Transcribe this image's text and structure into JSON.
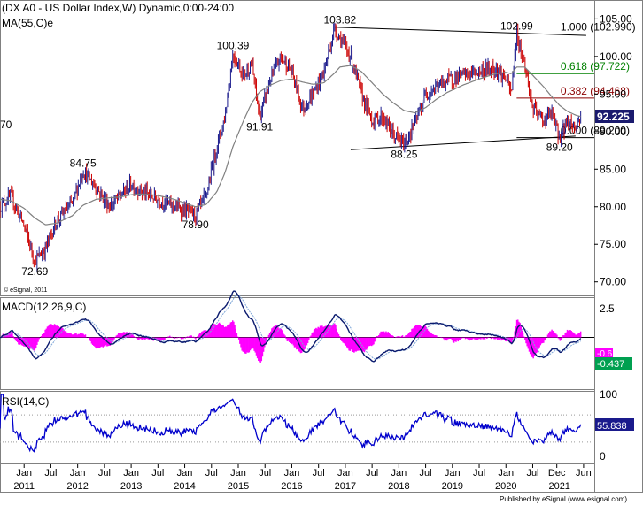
{
  "main_panel": {
    "title": "(DX A0 - US Dollar Index,W) Dynamic,0:00-24:00",
    "ma_label": "MA(55,C)e",
    "left_edge_label": "70",
    "copyright": "© eSignal, 2011",
    "y_ticks": [
      70,
      75,
      80,
      85,
      90,
      95,
      100,
      105
    ],
    "ylim": [
      68.2,
      107.4
    ],
    "last_price": "92.225",
    "colors": {
      "up": "#1a1a8c",
      "down": "#cc0000",
      "ma": "#808080",
      "fib_green": "#008000",
      "fib_red": "#8b0000"
    }
  },
  "peak_labels": [
    {
      "text": "72.69",
      "x": 2011.2,
      "y": 72.69,
      "pos": "below"
    },
    {
      "text": "84.75",
      "x": 2012.1,
      "y": 84.75,
      "pos": "above"
    },
    {
      "text": "78.90",
      "x": 2014.2,
      "y": 78.9,
      "pos": "below"
    },
    {
      "text": "100.39",
      "x": 2014.9,
      "y": 100.39,
      "pos": "above"
    },
    {
      "text": "91.91",
      "x": 2015.4,
      "y": 91.91,
      "pos": "below"
    },
    {
      "text": "103.82",
      "x": 2016.9,
      "y": 103.82,
      "pos": "above"
    },
    {
      "text": "88.25",
      "x": 2018.1,
      "y": 88.25,
      "pos": "below"
    },
    {
      "text": "102.99",
      "x": 2020.2,
      "y": 102.99,
      "pos": "above"
    },
    {
      "text": "89.20",
      "x": 2021.0,
      "y": 89.2,
      "pos": "below"
    }
  ],
  "fib_levels": [
    {
      "ratio_label": "1.000 (102.990)",
      "value": 102.99,
      "color": "#000000"
    },
    {
      "ratio_label": "0.618 (97.722)",
      "value": 97.722,
      "color": "#008000"
    },
    {
      "ratio_label": "0.382 (94.468)",
      "value": 94.468,
      "color": "#8b0000"
    },
    {
      "ratio_label": "0.000 (89.200)",
      "value": 89.2,
      "color": "#000000"
    }
  ],
  "trendlines": [
    {
      "from": [
        2016.8,
        103.9
      ],
      "to": [
        2021.5,
        102.8
      ]
    },
    {
      "from": [
        2017.1,
        87.6
      ],
      "to": [
        2021.3,
        89.4
      ]
    }
  ],
  "macd_panel": {
    "label": "MACD(12,26,9,C)",
    "y_ticks": [
      "2.5",
      "0"
    ],
    "ylim": [
      -4.5,
      3.2
    ],
    "last_value": "-0.437",
    "last_value_signal": "-0.6"
  },
  "rsi_panel": {
    "label": "RSI(14,C)",
    "y_ticks": [
      "100",
      "50",
      "0"
    ],
    "ylim": [
      0,
      100
    ],
    "last_value": "55.838",
    "levels": [
      70,
      30
    ]
  },
  "x_axis": {
    "ticks": [
      {
        "label": "Jan",
        "x": 2011.0
      },
      {
        "label": "Jul",
        "x": 2011.5
      },
      {
        "label": "Jan",
        "x": 2012.0
      },
      {
        "label": "Jul",
        "x": 2012.5
      },
      {
        "label": "Jan",
        "x": 2013.0
      },
      {
        "label": "Jul",
        "x": 2013.5
      },
      {
        "label": "Jan",
        "x": 2014.0
      },
      {
        "label": "Jul",
        "x": 2014.5
      },
      {
        "label": "Jan",
        "x": 2015.0
      },
      {
        "label": "Jul",
        "x": 2015.5
      },
      {
        "label": "Jan",
        "x": 2016.0
      },
      {
        "label": "Jul",
        "x": 2016.5
      },
      {
        "label": "Jan",
        "x": 2017.0
      },
      {
        "label": "Jul",
        "x": 2017.5
      },
      {
        "label": "Jan",
        "x": 2018.0
      },
      {
        "label": "Jul",
        "x": 2018.5
      },
      {
        "label": "Jan",
        "x": 2019.0
      },
      {
        "label": "Jul",
        "x": 2019.5
      },
      {
        "label": "Jan",
        "x": 2020.0
      },
      {
        "label": "Jul",
        "x": 2020.5
      },
      {
        "label": "Dec",
        "x": 2020.95
      },
      {
        "label": "Jun",
        "x": 2021.45
      }
    ],
    "years": [
      {
        "label": "2011",
        "x": 2011.0
      },
      {
        "label": "2012",
        "x": 2012.0
      },
      {
        "label": "2013",
        "x": 2013.0
      },
      {
        "label": "2014",
        "x": 2014.0
      },
      {
        "label": "2015",
        "x": 2015.0
      },
      {
        "label": "2016",
        "x": 2016.0
      },
      {
        "label": "2017",
        "x": 2017.0
      },
      {
        "label": "2018",
        "x": 2018.0
      },
      {
        "label": "2019",
        "x": 2019.0
      },
      {
        "label": "2020",
        "x": 2020.0
      },
      {
        "label": "2021",
        "x": 2021.0
      }
    ],
    "xlim": [
      2010.55,
      2021.65
    ],
    "footer": "Published by eSignal (www.esignal.com)"
  },
  "chart_data": {
    "type": "line",
    "title": "(DX A0 - US Dollar Index,W) Dynamic,0:00-24:00",
    "x": [
      2010.55,
      2010.75,
      2011.0,
      2011.2,
      2011.4,
      2011.6,
      2011.9,
      2012.1,
      2012.35,
      2012.6,
      2012.8,
      2013.0,
      2013.2,
      2013.5,
      2013.8,
      2014.0,
      2014.2,
      2014.4,
      2014.6,
      2014.75,
      2014.9,
      2015.1,
      2015.25,
      2015.4,
      2015.6,
      2015.8,
      2016.0,
      2016.2,
      2016.4,
      2016.6,
      2016.8,
      2016.9,
      2017.1,
      2017.3,
      2017.5,
      2017.7,
      2017.9,
      2018.1,
      2018.3,
      2018.5,
      2018.7,
      2018.9,
      2019.2,
      2019.5,
      2019.8,
      2020.0,
      2020.1,
      2020.2,
      2020.35,
      2020.5,
      2020.7,
      2020.85,
      2021.0,
      2021.15,
      2021.3,
      2021.4
    ],
    "series": [
      {
        "name": "DX A0 - US Dollar Index",
        "values": [
          80.0,
          81.4,
          77.5,
          72.7,
          74.5,
          78.0,
          80.5,
          84.8,
          82.5,
          80.0,
          81.5,
          83.0,
          82.0,
          81.0,
          80.0,
          79.5,
          78.9,
          81.5,
          88.0,
          92.0,
          100.4,
          97.5,
          99.0,
          91.9,
          97.0,
          100.0,
          98.0,
          93.0,
          95.0,
          98.0,
          103.8,
          102.5,
          100.0,
          95.0,
          91.5,
          92.0,
          89.5,
          88.3,
          91.0,
          95.0,
          96.0,
          96.8,
          97.5,
          98.0,
          98.5,
          97.0,
          95.0,
          103.0,
          99.0,
          93.0,
          91.5,
          92.5,
          89.2,
          91.5,
          90.5,
          92.2
        ]
      },
      {
        "name": "MA(55,C)e",
        "values": [
          81.0,
          80.8,
          79.8,
          78.5,
          77.6,
          77.8,
          78.8,
          80.2,
          81.0,
          81.2,
          81.3,
          81.6,
          81.7,
          81.5,
          81.0,
          80.5,
          80.0,
          80.3,
          82.0,
          84.5,
          88.0,
          91.5,
          93.8,
          95.3,
          96.2,
          96.8,
          97.0,
          96.6,
          96.3,
          96.5,
          97.8,
          98.6,
          98.8,
          98.0,
          96.5,
          95.0,
          93.8,
          92.8,
          92.5,
          93.2,
          94.3,
          95.2,
          96.2,
          97.0,
          97.7,
          97.9,
          97.7,
          98.6,
          98.6,
          97.5,
          96.0,
          94.7,
          93.5,
          92.7,
          92.2,
          92.0
        ]
      }
    ],
    "xlabel": "",
    "ylabel": "",
    "ylim": [
      68.2,
      107.4
    ],
    "grid": false,
    "legend": "top-left"
  }
}
